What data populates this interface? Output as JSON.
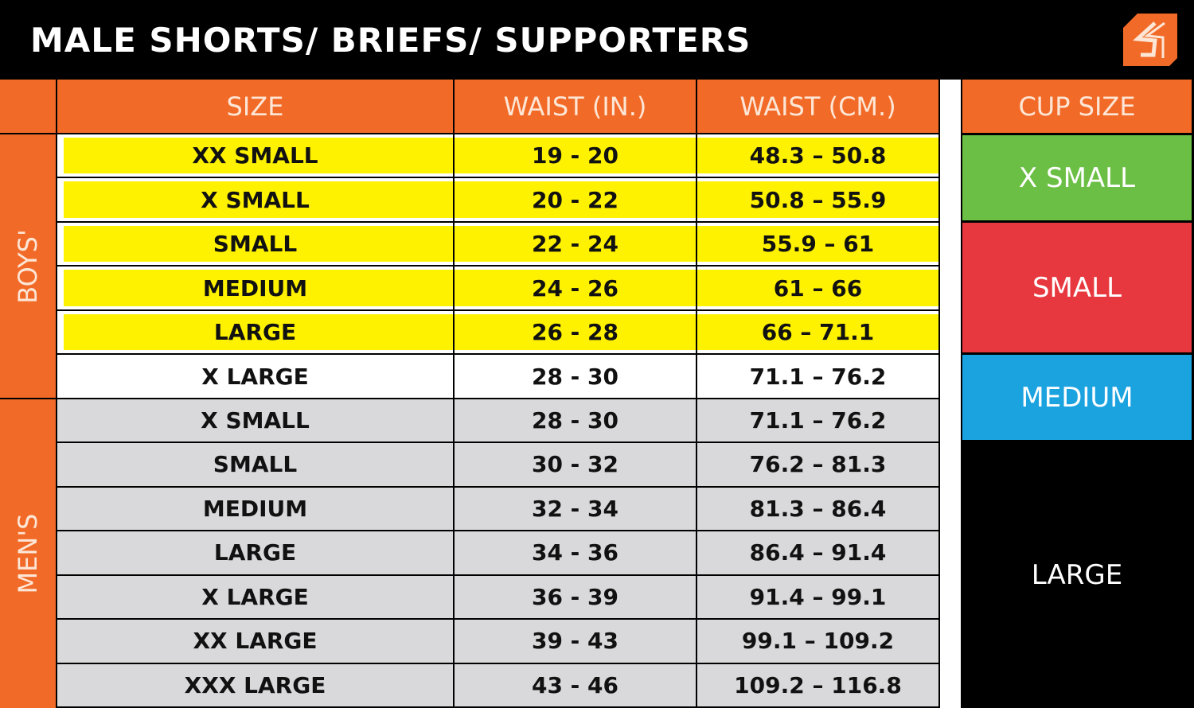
{
  "title": "MALE SHORTS/ BRIEFS/ SUPPORTERS",
  "logo_icon": "brand-s-logo-icon",
  "colors": {
    "orange": "#f26a27",
    "yellow": "#fff200",
    "gray": "#d9d9db",
    "green": "#6bbf44",
    "red": "#e8383f",
    "blue": "#1ba3e0"
  },
  "headers": {
    "size": "SIZE",
    "waist_in": "WAIST (IN.)",
    "waist_cm": "WAIST (CM.)",
    "cup": "CUP SIZE"
  },
  "groups": {
    "boys": "BOYS'",
    "mens": "MEN'S"
  },
  "rows": [
    {
      "group": "boys",
      "size": "XX SMALL",
      "in": "19 - 20",
      "cm": "48.3 – 50.8",
      "style": "yellow"
    },
    {
      "group": "boys",
      "size": "X SMALL",
      "in": "20 - 22",
      "cm": "50.8 – 55.9",
      "style": "yellow"
    },
    {
      "group": "boys",
      "size": "SMALL",
      "in": "22 - 24",
      "cm": "55.9 – 61",
      "style": "yellow"
    },
    {
      "group": "boys",
      "size": "MEDIUM",
      "in": "24 - 26",
      "cm": "61 – 66",
      "style": "yellow"
    },
    {
      "group": "boys",
      "size": "LARGE",
      "in": "26 - 28",
      "cm": "66 – 71.1",
      "style": "yellow"
    },
    {
      "group": "boys",
      "size": "X LARGE",
      "in": "28 - 30",
      "cm": "71.1 – 76.2",
      "style": "white"
    },
    {
      "group": "mens",
      "size": "X SMALL",
      "in": "28 - 30",
      "cm": "71.1 – 76.2",
      "style": "gray"
    },
    {
      "group": "mens",
      "size": "SMALL",
      "in": "30 - 32",
      "cm": "76.2 – 81.3",
      "style": "gray"
    },
    {
      "group": "mens",
      "size": "MEDIUM",
      "in": "32 - 34",
      "cm": "81.3 – 86.4",
      "style": "gray"
    },
    {
      "group": "mens",
      "size": "LARGE",
      "in": "34 - 36",
      "cm": "86.4 – 91.4",
      "style": "gray"
    },
    {
      "group": "mens",
      "size": "X LARGE",
      "in": "36 - 39",
      "cm": "91.4 – 99.1",
      "style": "gray"
    },
    {
      "group": "mens",
      "size": "XX LARGE",
      "in": "39 - 43",
      "cm": "99.1 – 109.2",
      "style": "gray"
    },
    {
      "group": "mens",
      "size": "XXX LARGE",
      "in": "43 - 46",
      "cm": "109.2 – 116.8",
      "style": "gray"
    }
  ],
  "cups": [
    {
      "label": "X SMALL",
      "color": "#6bbf44"
    },
    {
      "label": "SMALL",
      "color": "#e8383f"
    },
    {
      "label": "MEDIUM",
      "color": "#1ba3e0"
    },
    {
      "label": "LARGE",
      "color": "#000000"
    }
  ]
}
